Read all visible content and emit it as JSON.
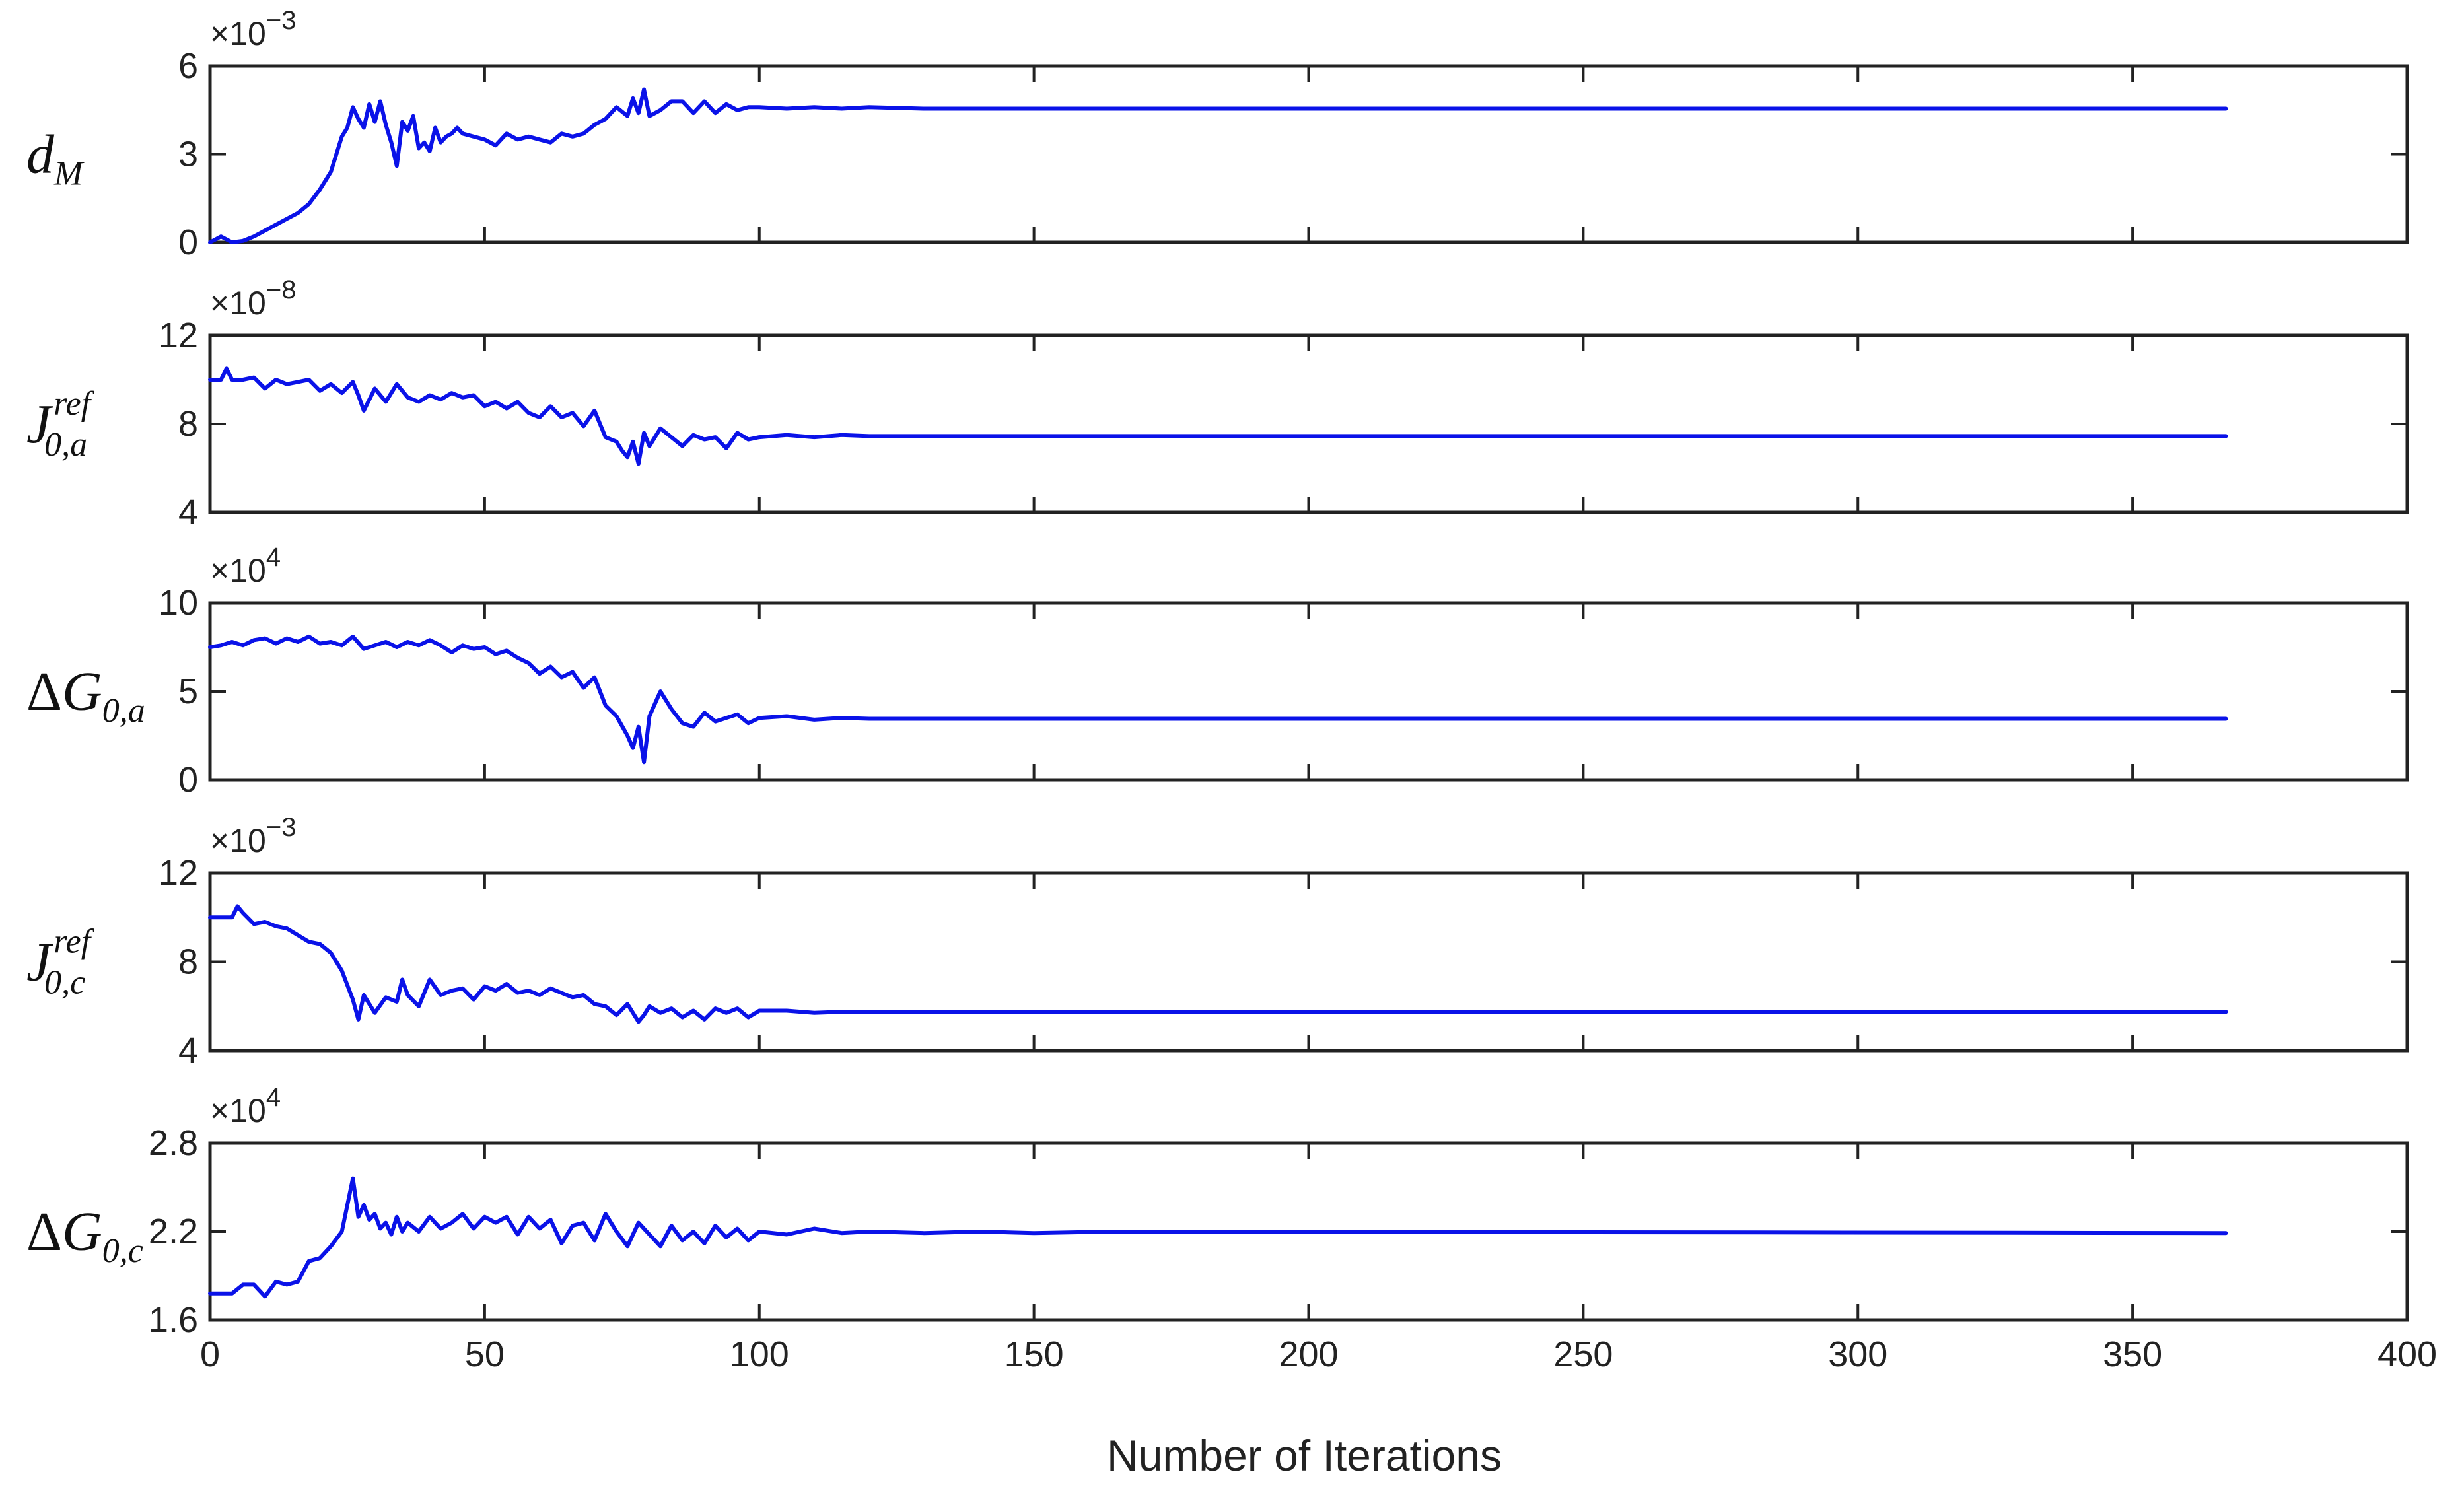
{
  "figure": {
    "xlabel": "Number of Iterations",
    "line_color": "#0a12e8",
    "axis_color": "#222222"
  },
  "chart_data": [
    {
      "type": "line",
      "ylabel": {
        "main": "d",
        "sub": "M",
        "sup": "",
        "delta": false
      },
      "multiplier": {
        "base": "×10",
        "exp": "−3"
      },
      "ylim": [
        0,
        6
      ],
      "yticks": [
        "0",
        "3",
        "6"
      ],
      "xlim": [
        0,
        400
      ],
      "series": [
        {
          "x": [
            0,
            2,
            4,
            6,
            8,
            10,
            12,
            14,
            16,
            18,
            20,
            21,
            22,
            23,
            24,
            25,
            26,
            27,
            28,
            29,
            30,
            31,
            32,
            33,
            34,
            35,
            36,
            37,
            38,
            39,
            40,
            41,
            42,
            43,
            44,
            45,
            46,
            48,
            50,
            52,
            54,
            56,
            58,
            60,
            62,
            64,
            66,
            68,
            70,
            72,
            74,
            76,
            77,
            78,
            79,
            80,
            82,
            84,
            86,
            88,
            90,
            92,
            94,
            96,
            98,
            100,
            105,
            110,
            115,
            120,
            130,
            140,
            150,
            160,
            367
          ],
          "y": [
            0,
            0.2,
            0,
            0.05,
            0.2,
            0.4,
            0.6,
            0.8,
            1.0,
            1.3,
            1.8,
            2.1,
            2.4,
            3.0,
            3.6,
            3.9,
            4.6,
            4.2,
            3.9,
            4.7,
            4.1,
            4.8,
            4.0,
            3.4,
            2.6,
            4.1,
            3.8,
            4.3,
            3.2,
            3.4,
            3.1,
            3.9,
            3.4,
            3.6,
            3.7,
            3.9,
            3.7,
            3.6,
            3.5,
            3.3,
            3.7,
            3.5,
            3.6,
            3.5,
            3.4,
            3.7,
            3.6,
            3.7,
            4.0,
            4.2,
            4.6,
            4.3,
            4.9,
            4.4,
            5.2,
            4.3,
            4.5,
            4.8,
            4.8,
            4.4,
            4.8,
            4.4,
            4.7,
            4.5,
            4.6,
            4.6,
            4.55,
            4.6,
            4.55,
            4.6,
            4.55,
            4.55,
            4.55,
            4.55,
            4.55
          ]
        }
      ]
    },
    {
      "type": "line",
      "ylabel": {
        "main": "J",
        "sub": "0,a",
        "sup": "ref",
        "delta": false
      },
      "multiplier": {
        "base": "×10",
        "exp": "−8"
      },
      "ylim": [
        4,
        12
      ],
      "yticks": [
        "4",
        "8",
        "12"
      ],
      "xlim": [
        0,
        400
      ],
      "series": [
        {
          "x": [
            0,
            2,
            3,
            4,
            6,
            8,
            10,
            12,
            14,
            16,
            18,
            20,
            22,
            24,
            26,
            27,
            28,
            30,
            32,
            34,
            36,
            38,
            40,
            42,
            44,
            46,
            48,
            50,
            52,
            54,
            56,
            58,
            60,
            62,
            64,
            66,
            68,
            70,
            72,
            74,
            75,
            76,
            77,
            78,
            79,
            80,
            82,
            84,
            86,
            88,
            90,
            92,
            94,
            96,
            98,
            100,
            105,
            110,
            115,
            120,
            130,
            140,
            150,
            367
          ],
          "y": [
            10,
            10,
            10.5,
            10,
            10,
            10.1,
            9.6,
            10,
            9.8,
            9.9,
            10,
            9.5,
            9.8,
            9.4,
            9.9,
            9.3,
            8.6,
            9.6,
            9.0,
            9.8,
            9.2,
            9.0,
            9.3,
            9.1,
            9.4,
            9.2,
            9.3,
            8.8,
            9.0,
            8.7,
            9.0,
            8.5,
            8.3,
            8.8,
            8.3,
            8.5,
            7.9,
            8.6,
            7.4,
            7.2,
            6.8,
            6.5,
            7.2,
            6.2,
            7.6,
            7.0,
            7.8,
            7.4,
            7.0,
            7.5,
            7.3,
            7.4,
            6.9,
            7.6,
            7.3,
            7.4,
            7.5,
            7.4,
            7.5,
            7.45,
            7.45,
            7.45,
            7.45,
            7.45
          ]
        }
      ]
    },
    {
      "type": "line",
      "ylabel": {
        "main": "G",
        "sub": "0,a",
        "sup": "",
        "delta": true
      },
      "multiplier": {
        "base": "×10",
        "exp": "4"
      },
      "ylim": [
        0,
        10
      ],
      "yticks": [
        "0",
        "5",
        "10"
      ],
      "xlim": [
        0,
        400
      ],
      "series": [
        {
          "x": [
            0,
            2,
            4,
            6,
            8,
            10,
            12,
            14,
            16,
            18,
            20,
            22,
            24,
            26,
            28,
            30,
            32,
            34,
            36,
            38,
            40,
            42,
            44,
            46,
            48,
            50,
            52,
            54,
            56,
            58,
            60,
            62,
            64,
            66,
            68,
            70,
            72,
            74,
            76,
            77,
            78,
            79,
            80,
            82,
            84,
            86,
            88,
            90,
            92,
            94,
            96,
            98,
            100,
            105,
            110,
            115,
            120,
            130,
            140,
            150,
            367
          ],
          "y": [
            7.5,
            7.6,
            7.8,
            7.6,
            7.9,
            8.0,
            7.7,
            8.0,
            7.8,
            8.1,
            7.7,
            7.8,
            7.6,
            8.1,
            7.4,
            7.6,
            7.8,
            7.5,
            7.8,
            7.6,
            7.9,
            7.6,
            7.2,
            7.6,
            7.4,
            7.5,
            7.1,
            7.3,
            6.9,
            6.6,
            6.0,
            6.4,
            5.8,
            6.1,
            5.2,
            5.8,
            4.2,
            3.6,
            2.5,
            1.8,
            3.0,
            1.0,
            3.6,
            5.0,
            4.0,
            3.2,
            3.0,
            3.8,
            3.3,
            3.5,
            3.7,
            3.2,
            3.5,
            3.6,
            3.4,
            3.5,
            3.45,
            3.45,
            3.45,
            3.45,
            3.45
          ]
        }
      ]
    },
    {
      "type": "line",
      "ylabel": {
        "main": "J",
        "sub": "0,c",
        "sup": "ref",
        "delta": false
      },
      "multiplier": {
        "base": "×10",
        "exp": "−3"
      },
      "ylim": [
        4,
        12
      ],
      "yticks": [
        "4",
        "8",
        "12"
      ],
      "xlim": [
        0,
        400
      ],
      "series": [
        {
          "x": [
            0,
            2,
            4,
            5,
            6,
            8,
            10,
            12,
            14,
            16,
            18,
            20,
            22,
            24,
            26,
            27,
            28,
            30,
            32,
            34,
            35,
            36,
            38,
            40,
            42,
            44,
            46,
            48,
            50,
            52,
            54,
            56,
            58,
            60,
            62,
            64,
            66,
            68,
            70,
            72,
            74,
            76,
            78,
            79,
            80,
            82,
            84,
            86,
            88,
            90,
            92,
            94,
            96,
            98,
            100,
            105,
            110,
            115,
            120,
            130,
            140,
            150,
            367
          ],
          "y": [
            10,
            10,
            10,
            10.5,
            10.2,
            9.7,
            9.8,
            9.6,
            9.5,
            9.2,
            8.9,
            8.8,
            8.4,
            7.6,
            6.3,
            5.4,
            6.5,
            5.7,
            6.4,
            6.2,
            7.2,
            6.5,
            6.0,
            7.2,
            6.5,
            6.7,
            6.8,
            6.3,
            6.9,
            6.7,
            7.0,
            6.6,
            6.7,
            6.5,
            6.8,
            6.6,
            6.4,
            6.5,
            6.1,
            6.0,
            5.6,
            6.1,
            5.3,
            5.6,
            6.0,
            5.7,
            5.9,
            5.5,
            5.8,
            5.4,
            5.9,
            5.7,
            5.9,
            5.5,
            5.8,
            5.8,
            5.7,
            5.75,
            5.75,
            5.75,
            5.75,
            5.75,
            5.75
          ]
        }
      ]
    },
    {
      "type": "line",
      "ylabel": {
        "main": "G",
        "sub": "0,c",
        "sup": "",
        "delta": true
      },
      "multiplier": {
        "base": "×10",
        "exp": "4"
      },
      "ylim": [
        1.6,
        2.8
      ],
      "yticks": [
        "1.6",
        "2.2",
        "2.8"
      ],
      "xlim": [
        0,
        400
      ],
      "series": [
        {
          "x": [
            0,
            4,
            6,
            8,
            10,
            12,
            14,
            16,
            18,
            20,
            22,
            24,
            26,
            27,
            28,
            29,
            30,
            31,
            32,
            33,
            34,
            35,
            36,
            38,
            40,
            42,
            44,
            46,
            48,
            50,
            52,
            54,
            56,
            58,
            60,
            62,
            64,
            66,
            68,
            70,
            72,
            74,
            76,
            78,
            80,
            82,
            84,
            86,
            88,
            90,
            92,
            94,
            96,
            98,
            100,
            105,
            110,
            115,
            120,
            130,
            140,
            150,
            165,
            367
          ],
          "y": [
            1.78,
            1.78,
            1.84,
            1.84,
            1.76,
            1.86,
            1.84,
            1.86,
            2.0,
            2.02,
            2.1,
            2.2,
            2.56,
            2.3,
            2.38,
            2.28,
            2.32,
            2.22,
            2.26,
            2.18,
            2.3,
            2.2,
            2.26,
            2.2,
            2.3,
            2.22,
            2.26,
            2.32,
            2.22,
            2.3,
            2.26,
            2.3,
            2.18,
            2.3,
            2.22,
            2.28,
            2.12,
            2.24,
            2.26,
            2.14,
            2.32,
            2.2,
            2.1,
            2.26,
            2.18,
            2.1,
            2.24,
            2.14,
            2.2,
            2.12,
            2.24,
            2.16,
            2.22,
            2.14,
            2.2,
            2.18,
            2.22,
            2.19,
            2.2,
            2.19,
            2.2,
            2.19,
            2.2,
            2.19
          ]
        }
      ]
    }
  ],
  "x_axis": {
    "ticks": [
      "0",
      "50",
      "100",
      "150",
      "200",
      "250",
      "300",
      "350",
      "400"
    ]
  }
}
